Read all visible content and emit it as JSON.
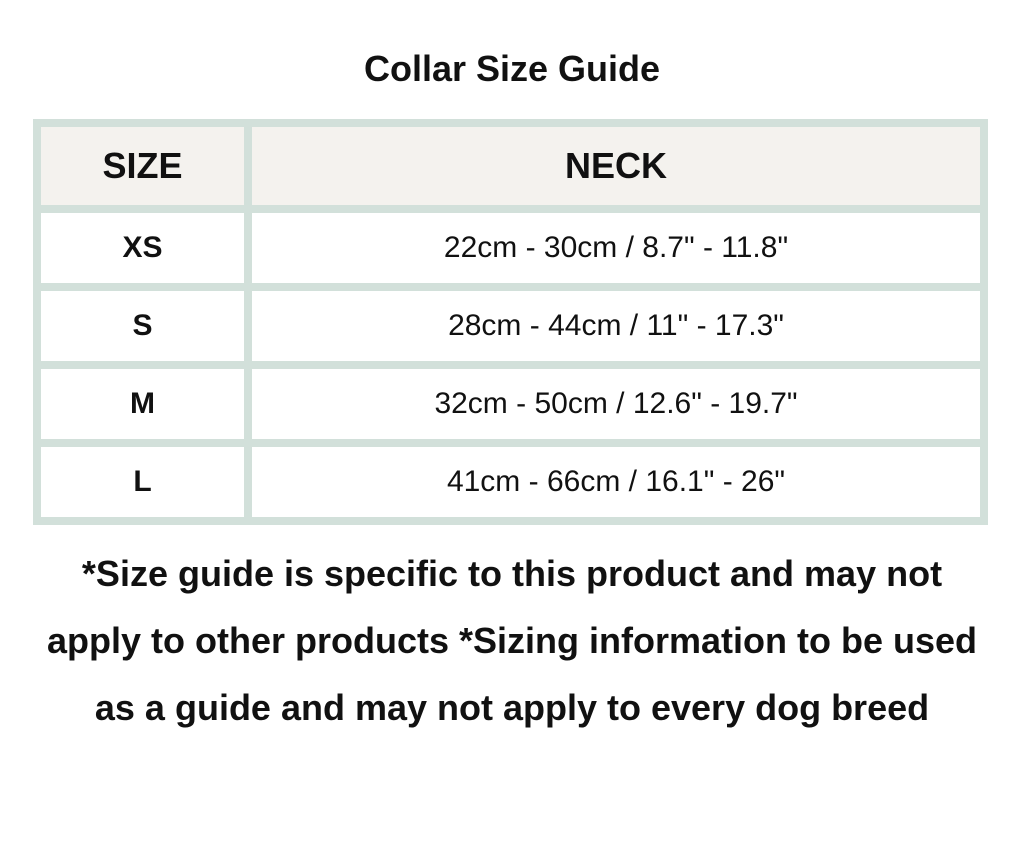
{
  "title": "Collar Size Guide",
  "table": {
    "headers": [
      "SIZE",
      "NECK"
    ],
    "rows": [
      {
        "size": "XS",
        "neck": "22cm - 30cm / 8.7\" - 11.8\""
      },
      {
        "size": "S",
        "neck": "28cm - 44cm / 11\" - 17.3\""
      },
      {
        "size": "M",
        "neck": "32cm - 50cm / 12.6\" - 19.7\""
      },
      {
        "size": "L",
        "neck": "41cm - 66cm / 16.1\" - 26\""
      }
    ]
  },
  "note": "*Size guide is specific to this product and may not apply to other products *Sizing information to be used as a guide and may not apply to every dog breed",
  "colors": {
    "border": "#d2e0da",
    "header_bg": "#f4f2ee"
  }
}
